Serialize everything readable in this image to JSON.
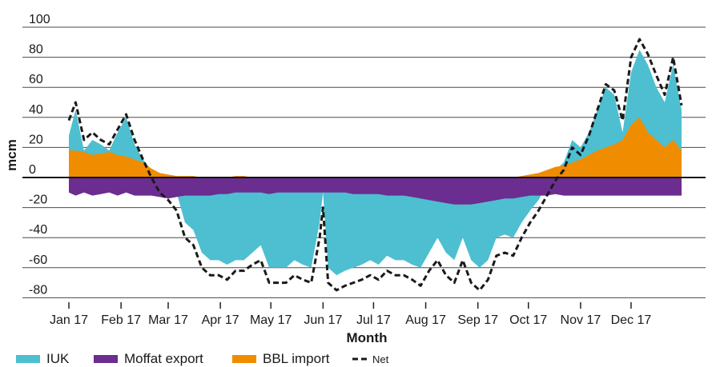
{
  "chart_data": {
    "type": "area",
    "title": "",
    "xlabel": "Month",
    "ylabel": "mcm",
    "ylim": [
      -90,
      100
    ],
    "yticks": [
      100,
      80,
      60,
      40,
      20,
      0,
      -20,
      -40,
      -60,
      -80
    ],
    "categories": [
      "Jan 17",
      "Feb 17",
      "Mar 17",
      "Apr 17",
      "May 17",
      "Jun 17",
      "Jul 17",
      "Aug 17",
      "Sep 17",
      "Oct 17",
      "Nov 17",
      "Dec 17"
    ],
    "grid": true,
    "legend_position": "bottom-left",
    "x": [
      1,
      5,
      10,
      15,
      20,
      25,
      30,
      35,
      40,
      45,
      50,
      55,
      60,
      65,
      70,
      75,
      80,
      85,
      90,
      95,
      100,
      105,
      110,
      115,
      120,
      125,
      130,
      135,
      140,
      145,
      150,
      152,
      155,
      160,
      165,
      170,
      175,
      180,
      185,
      190,
      195,
      200,
      205,
      210,
      215,
      220,
      225,
      230,
      235,
      240,
      245,
      250,
      255,
      260,
      265,
      270,
      275,
      280,
      285,
      290,
      295,
      300,
      305,
      310,
      315,
      320,
      325,
      330,
      335,
      340,
      345,
      350,
      355,
      360,
      365
    ],
    "series": [
      {
        "name": "IUK",
        "color": "#4dbfd0",
        "values": [
          28,
          45,
          18,
          25,
          22,
          18,
          30,
          40,
          22,
          12,
          5,
          -2,
          -5,
          -10,
          -30,
          -35,
          -50,
          -55,
          -55,
          -58,
          -55,
          -55,
          -50,
          -45,
          -60,
          -60,
          -60,
          -55,
          -58,
          -60,
          -30,
          -10,
          -60,
          -65,
          -62,
          -60,
          -58,
          -55,
          -58,
          -52,
          -55,
          -55,
          -58,
          -60,
          -50,
          -40,
          -50,
          -55,
          -40,
          -55,
          -60,
          -55,
          -40,
          -38,
          -40,
          -30,
          -22,
          -15,
          -5,
          5,
          10,
          25,
          20,
          30,
          45,
          60,
          55,
          30,
          70,
          85,
          75,
          60,
          50,
          75,
          45
        ]
      },
      {
        "name": "Moffat export",
        "color": "#6b2d8f",
        "values": [
          -10,
          -12,
          -10,
          -12,
          -11,
          -10,
          -12,
          -10,
          -12,
          -12,
          -12,
          -13,
          -14,
          -13,
          -12,
          -12,
          -12,
          -12,
          -11,
          -11,
          -10,
          -10,
          -10,
          -10,
          -11,
          -10,
          -10,
          -10,
          -10,
          -10,
          -10,
          -10,
          -10,
          -10,
          -10,
          -11,
          -11,
          -11,
          -11,
          -12,
          -12,
          -12,
          -13,
          -14,
          -15,
          -16,
          -17,
          -18,
          -18,
          -18,
          -17,
          -16,
          -15,
          -14,
          -14,
          -13,
          -12,
          -12,
          -12,
          -11,
          -12,
          -12,
          -12,
          -12,
          -12,
          -12,
          -12,
          -12,
          -12,
          -12,
          -12,
          -12,
          -12,
          -12,
          -12
        ]
      },
      {
        "name": "BBL import",
        "color": "#f08c00",
        "values": [
          18,
          18,
          17,
          15,
          16,
          17,
          15,
          14,
          12,
          10,
          6,
          3,
          2,
          1,
          1,
          1,
          0,
          0,
          0,
          0,
          1,
          1,
          0,
          0,
          0,
          0,
          0,
          0,
          0,
          0,
          0,
          0,
          0,
          0,
          0,
          0,
          0,
          0,
          0,
          0,
          0,
          0,
          0,
          0,
          0,
          0,
          0,
          0,
          0,
          0,
          0,
          0,
          0,
          0,
          0,
          1,
          2,
          3,
          5,
          7,
          8,
          10,
          12,
          15,
          18,
          20,
          22,
          25,
          35,
          40,
          30,
          25,
          20,
          25,
          18
        ]
      },
      {
        "name": "Net",
        "color": "#1a1a1a",
        "values": [
          38,
          50,
          25,
          30,
          25,
          22,
          32,
          42,
          25,
          12,
          0,
          -10,
          -15,
          -22,
          -40,
          -45,
          -60,
          -65,
          -65,
          -68,
          -62,
          -62,
          -58,
          -55,
          -70,
          -70,
          -70,
          -65,
          -68,
          -70,
          -40,
          -20,
          -70,
          -75,
          -72,
          -70,
          -68,
          -65,
          -68,
          -62,
          -65,
          -65,
          -68,
          -72,
          -62,
          -55,
          -65,
          -70,
          -55,
          -70,
          -75,
          -68,
          -52,
          -50,
          -52,
          -40,
          -30,
          -22,
          -12,
          -2,
          5,
          20,
          15,
          28,
          45,
          62,
          58,
          38,
          80,
          92,
          82,
          68,
          55,
          80,
          48
        ]
      }
    ]
  },
  "legend": {
    "items": [
      {
        "label": "IUK",
        "color": "#4dbfd0",
        "style": "swatch"
      },
      {
        "label": "Moffat export",
        "color": "#6b2d8f",
        "style": "swatch"
      },
      {
        "label": "BBL import",
        "color": "#f08c00",
        "style": "swatch"
      },
      {
        "label": "Net",
        "color": "#1a1a1a",
        "style": "dashed-line"
      }
    ]
  }
}
